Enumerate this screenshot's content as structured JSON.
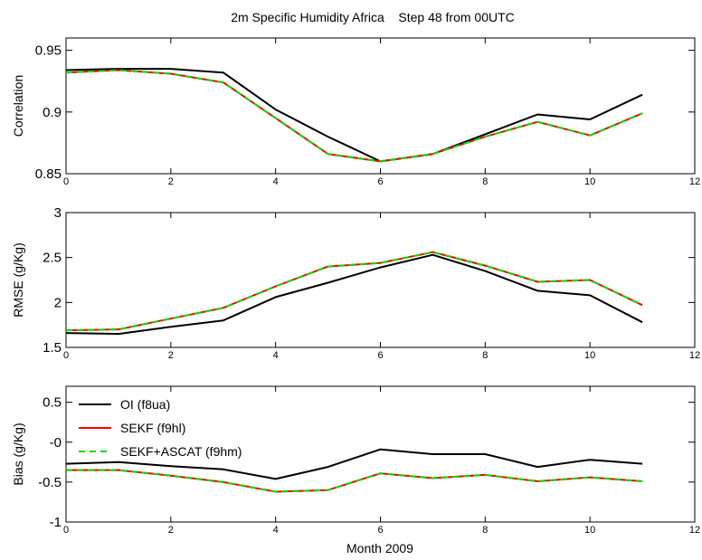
{
  "figure_title": "2m Specific Humidity Africa    Step 48 from 00UTC",
  "xlabel": "Month 2009",
  "series_styles": [
    {
      "name": "OI (f8ua)",
      "color": "#000000",
      "dash": ""
    },
    {
      "name": "SEKF (f9hl)",
      "color": "#ff0000",
      "dash": ""
    },
    {
      "name": "SEKF+ASCAT (f9hm)",
      "color": "#00dd00",
      "dash": "7,5"
    }
  ],
  "chart_data": [
    {
      "type": "line",
      "ylabel": "Correlation",
      "xlim": [
        0,
        12
      ],
      "ylim": [
        0.85,
        0.96
      ],
      "xticks": [
        0,
        2,
        4,
        6,
        8,
        10,
        12
      ],
      "yticks": [
        0.85,
        0.9,
        0.95
      ],
      "ytick_labels": [
        "0.85",
        "0.9",
        "0.95"
      ],
      "x": [
        0,
        1,
        2,
        3,
        4,
        5,
        6,
        7,
        8,
        9,
        10,
        11
      ],
      "series": [
        {
          "name": "OI (f8ua)",
          "values": [
            0.934,
            0.935,
            0.935,
            0.932,
            0.902,
            0.88,
            0.86,
            0.866,
            0.882,
            0.898,
            0.894,
            0.914
          ]
        },
        {
          "name": "SEKF (f9hl)",
          "values": [
            0.932,
            0.934,
            0.931,
            0.924,
            0.895,
            0.866,
            0.86,
            0.866,
            0.88,
            0.892,
            0.881,
            0.899
          ]
        },
        {
          "name": "SEKF+ASCAT (f9hm)",
          "values": [
            0.932,
            0.934,
            0.931,
            0.924,
            0.895,
            0.866,
            0.86,
            0.866,
            0.88,
            0.892,
            0.881,
            0.899
          ]
        }
      ]
    },
    {
      "type": "line",
      "ylabel": "RMSE (g/Kg)",
      "xlim": [
        0,
        12
      ],
      "ylim": [
        1.5,
        3
      ],
      "xticks": [
        0,
        2,
        4,
        6,
        8,
        10,
        12
      ],
      "yticks": [
        1.5,
        2,
        2.5,
        3
      ],
      "ytick_labels": [
        "1.5",
        "2",
        "2.5",
        "3"
      ],
      "x": [
        0,
        1,
        2,
        3,
        4,
        5,
        6,
        7,
        8,
        9,
        10,
        11
      ],
      "series": [
        {
          "name": "OI (f8ua)",
          "values": [
            1.66,
            1.65,
            1.73,
            1.8,
            2.06,
            2.22,
            2.39,
            2.53,
            2.35,
            2.13,
            2.08,
            1.78
          ]
        },
        {
          "name": "SEKF (f9hl)",
          "values": [
            1.69,
            1.7,
            1.82,
            1.94,
            2.18,
            2.4,
            2.44,
            2.56,
            2.41,
            2.23,
            2.25,
            1.97
          ]
        },
        {
          "name": "SEKF+ASCAT (f9hm)",
          "values": [
            1.69,
            1.7,
            1.82,
            1.94,
            2.18,
            2.4,
            2.44,
            2.56,
            2.41,
            2.23,
            2.25,
            1.97
          ]
        }
      ]
    },
    {
      "type": "line",
      "ylabel": "Bias (g/Kg)",
      "xlim": [
        0,
        12
      ],
      "ylim": [
        -1,
        0.7
      ],
      "xticks": [
        0,
        2,
        4,
        6,
        8,
        10,
        12
      ],
      "yticks": [
        -1,
        -0.5,
        0,
        0.5
      ],
      "ytick_labels": [
        "-1",
        "-0.5",
        "-0",
        "0.5"
      ],
      "legend": "top-left",
      "x": [
        0,
        1,
        2,
        3,
        4,
        5,
        6,
        7,
        8,
        9,
        10,
        11
      ],
      "series": [
        {
          "name": "OI (f8ua)",
          "values": [
            -0.27,
            -0.25,
            -0.3,
            -0.34,
            -0.46,
            -0.31,
            -0.09,
            -0.15,
            -0.15,
            -0.31,
            -0.22,
            -0.27
          ]
        },
        {
          "name": "SEKF (f9hl)",
          "values": [
            -0.35,
            -0.35,
            -0.42,
            -0.5,
            -0.62,
            -0.6,
            -0.39,
            -0.45,
            -0.41,
            -0.49,
            -0.44,
            -0.49
          ]
        },
        {
          "name": "SEKF+ASCAT (f9hm)",
          "values": [
            -0.35,
            -0.35,
            -0.42,
            -0.5,
            -0.62,
            -0.6,
            -0.39,
            -0.45,
            -0.41,
            -0.49,
            -0.44,
            -0.49
          ]
        }
      ]
    }
  ]
}
